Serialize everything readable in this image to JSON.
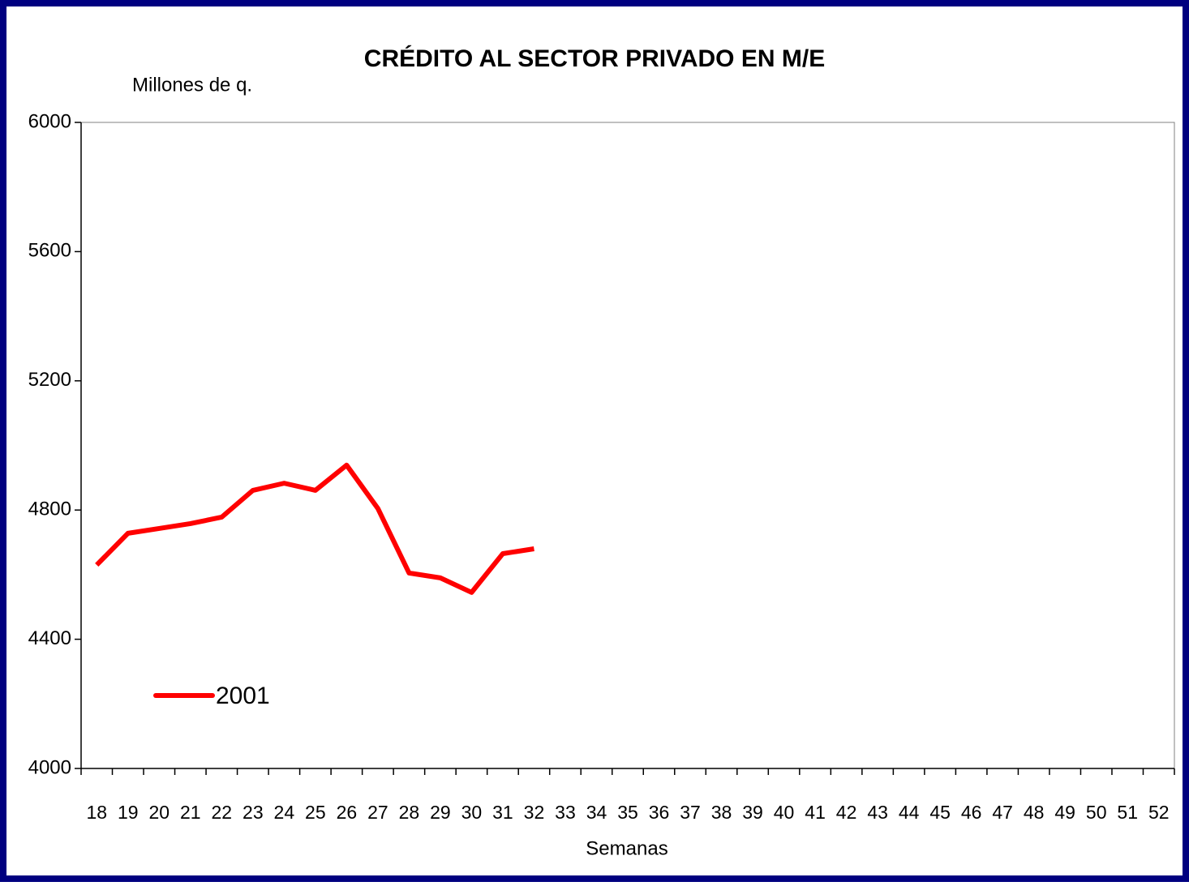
{
  "chart_data": {
    "type": "line",
    "title": "CRÉDITO AL SECTOR PRIVADO EN M/E",
    "y_label": "Millones de q.",
    "x_label": "Semanas",
    "categories": [
      18,
      19,
      20,
      21,
      22,
      23,
      24,
      25,
      26,
      27,
      28,
      29,
      30,
      31,
      32,
      33,
      34,
      35,
      36,
      37,
      38,
      39,
      40,
      41,
      42,
      43,
      44,
      45,
      46,
      47,
      48,
      49,
      50,
      51,
      52
    ],
    "series": [
      {
        "name": "2001",
        "color": "#ff0000",
        "values": [
          4630,
          4728,
          4743,
          4758,
          4778,
          4861,
          4883,
          4861,
          4939,
          4805,
          4605,
          4590,
          4545,
          4665,
          4680,
          null,
          null,
          null,
          null,
          null,
          null,
          null,
          null,
          null,
          null,
          null,
          null,
          null,
          null,
          null,
          null,
          null,
          null,
          null,
          null
        ]
      }
    ],
    "ylim": [
      4000,
      6000
    ],
    "yticks": [
      4000,
      4400,
      4800,
      5200,
      5600,
      6000
    ],
    "grid": false,
    "legend": "lower left"
  }
}
